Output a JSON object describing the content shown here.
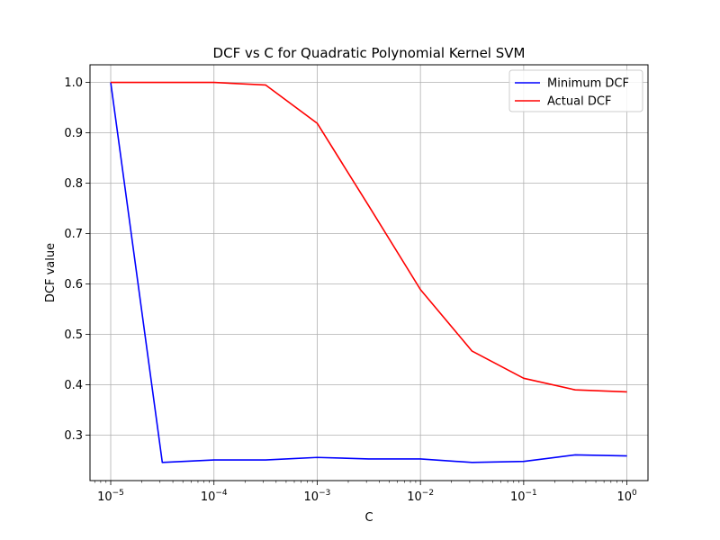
{
  "chart_data": {
    "type": "line",
    "title": "DCF vs C for Quadratic Polynomial Kernel SVM",
    "xlabel": "C",
    "ylabel": "DCF value",
    "x_scale": "log",
    "x": [
      1e-05,
      3.16e-05,
      0.0001,
      0.000316,
      0.001,
      0.00316,
      0.01,
      0.0316,
      0.1,
      0.316,
      1
    ],
    "xlim": [
      6.3e-06,
      1.6
    ],
    "ylim": [
      0.21,
      1.035
    ],
    "xticks": [
      {
        "base": "10",
        "exp": "−5"
      },
      {
        "base": "10",
        "exp": "−4"
      },
      {
        "base": "10",
        "exp": "−3"
      },
      {
        "base": "10",
        "exp": "−2"
      },
      {
        "base": "10",
        "exp": "−1"
      },
      {
        "base": "10",
        "exp": "0"
      }
    ],
    "yticks": [
      "0.3",
      "0.4",
      "0.5",
      "0.6",
      "0.7",
      "0.8",
      "0.9",
      "1.0"
    ],
    "grid": true,
    "legend_position": "top-right",
    "series": [
      {
        "name": "Minimum DCF",
        "color": "#0000ff",
        "values": [
          1.0,
          0.246,
          0.251,
          0.251,
          0.256,
          0.253,
          0.253,
          0.246,
          0.248,
          0.261,
          0.259
        ]
      },
      {
        "name": "Actual DCF",
        "color": "#ff0000",
        "values": [
          1.0,
          1.0,
          1.0,
          0.995,
          0.919,
          0.755,
          0.589,
          0.467,
          0.413,
          0.39,
          0.386
        ]
      }
    ]
  }
}
